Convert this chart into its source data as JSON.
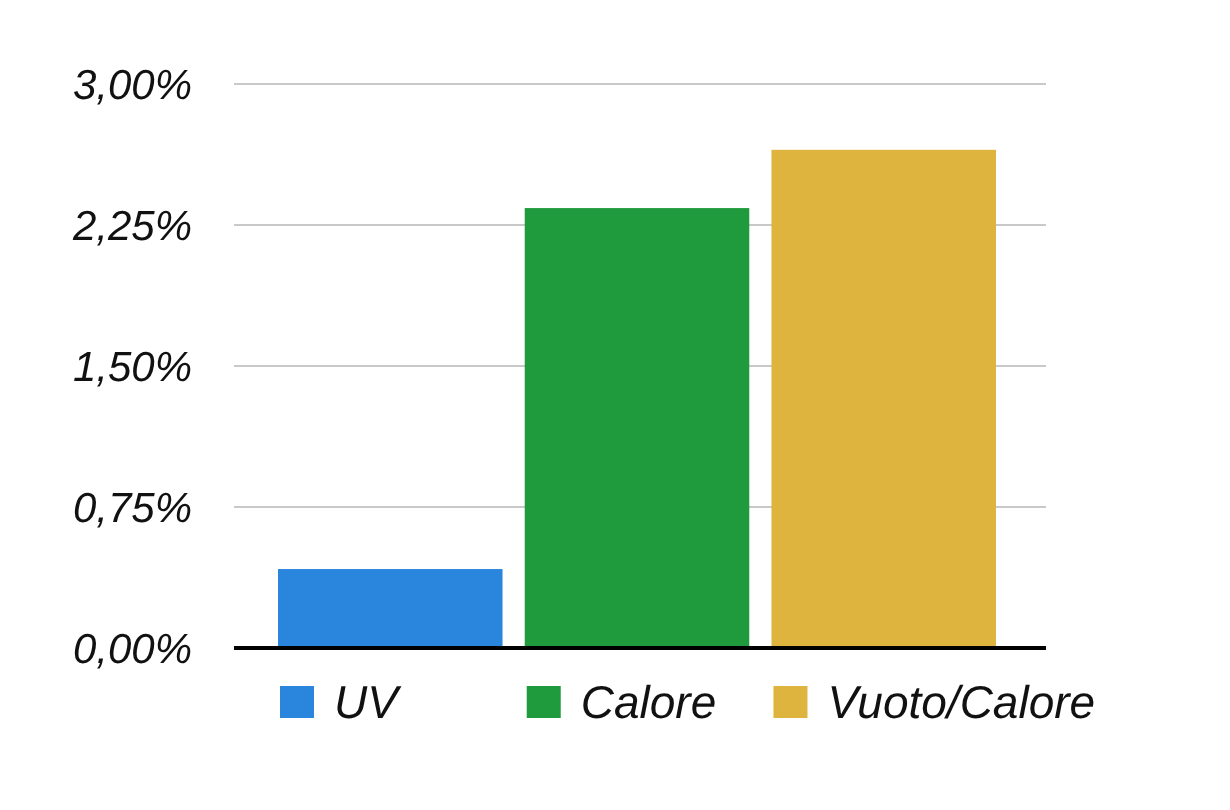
{
  "chart_data": {
    "type": "bar",
    "categories": [
      null
    ],
    "series": [
      {
        "name": "UV",
        "color": "#2a86dc",
        "values": [
          0.42
        ]
      },
      {
        "name": "Calore",
        "color": "#1f9a3c",
        "values": [
          2.34
        ]
      },
      {
        "name": "Vuoto/Calore",
        "color": "#deb43e",
        "values": [
          2.65
        ]
      }
    ],
    "ylim": [
      0,
      3
    ],
    "yticks": [
      {
        "value": 0,
        "label": "0,00%"
      },
      {
        "value": 0.75,
        "label": "0,75%"
      },
      {
        "value": 1.5,
        "label": "1,50%"
      },
      {
        "value": 2.25,
        "label": "2,25%"
      },
      {
        "value": 3,
        "label": "3,00%"
      }
    ],
    "grid": "y",
    "legend": "bottom",
    "tick_labels": "y"
  }
}
